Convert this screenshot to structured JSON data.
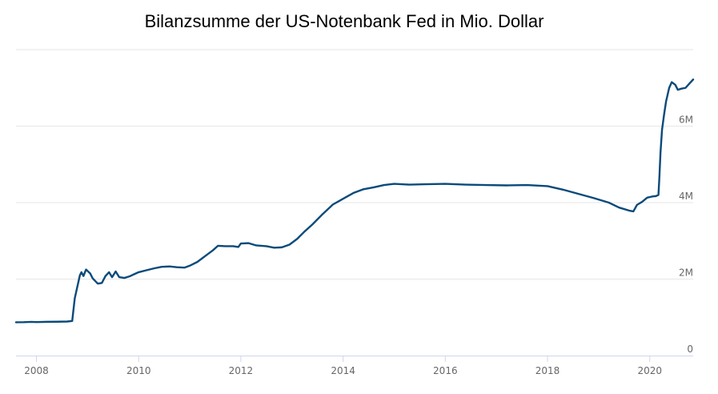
{
  "chart_data": {
    "type": "line",
    "title": "Bilanzsumme der US-Notenbank Fed in Mio. Dollar",
    "xlabel": "",
    "ylabel": "",
    "xlim": [
      2007.6,
      2020.85
    ],
    "ylim": [
      0,
      8000000
    ],
    "grid": true,
    "legend": "none",
    "colors": {
      "line": "#0a4a7a",
      "grid": "#e6e6e6",
      "axis": "#ccd6eb",
      "tick_text": "#666666"
    },
    "x_ticks": [
      {
        "value": 2008,
        "label": "2008"
      },
      {
        "value": 2010,
        "label": "2010"
      },
      {
        "value": 2012,
        "label": "2012"
      },
      {
        "value": 2014,
        "label": "2014"
      },
      {
        "value": 2016,
        "label": "2016"
      },
      {
        "value": 2018,
        "label": "2018"
      },
      {
        "value": 2020,
        "label": "2020"
      }
    ],
    "y_ticks": [
      {
        "value": 0,
        "label": "0"
      },
      {
        "value": 2000000,
        "label": "2M"
      },
      {
        "value": 4000000,
        "label": "4M"
      },
      {
        "value": 6000000,
        "label": "6M"
      }
    ],
    "series": [
      {
        "points": [
          [
            2007.6,
            870000
          ],
          [
            2007.75,
            872000
          ],
          [
            2007.9,
            880000
          ],
          [
            2008.0,
            875000
          ],
          [
            2008.2,
            882000
          ],
          [
            2008.4,
            885000
          ],
          [
            2008.6,
            890000
          ],
          [
            2008.7,
            905000
          ],
          [
            2008.72,
            1150000
          ],
          [
            2008.75,
            1500000
          ],
          [
            2008.8,
            1800000
          ],
          [
            2008.85,
            2100000
          ],
          [
            2008.88,
            2180000
          ],
          [
            2008.92,
            2080000
          ],
          [
            2008.97,
            2250000
          ],
          [
            2009.05,
            2150000
          ],
          [
            2009.1,
            2020000
          ],
          [
            2009.2,
            1880000
          ],
          [
            2009.28,
            1900000
          ],
          [
            2009.35,
            2080000
          ],
          [
            2009.42,
            2180000
          ],
          [
            2009.48,
            2050000
          ],
          [
            2009.55,
            2200000
          ],
          [
            2009.62,
            2050000
          ],
          [
            2009.72,
            2030000
          ],
          [
            2009.82,
            2070000
          ],
          [
            2009.9,
            2120000
          ],
          [
            2010.0,
            2180000
          ],
          [
            2010.15,
            2230000
          ],
          [
            2010.3,
            2280000
          ],
          [
            2010.45,
            2320000
          ],
          [
            2010.6,
            2330000
          ],
          [
            2010.75,
            2310000
          ],
          [
            2010.9,
            2300000
          ],
          [
            2011.0,
            2350000
          ],
          [
            2011.15,
            2450000
          ],
          [
            2011.3,
            2600000
          ],
          [
            2011.45,
            2750000
          ],
          [
            2011.55,
            2870000
          ],
          [
            2011.7,
            2860000
          ],
          [
            2011.85,
            2860000
          ],
          [
            2011.95,
            2840000
          ],
          [
            2012.0,
            2930000
          ],
          [
            2012.15,
            2940000
          ],
          [
            2012.3,
            2880000
          ],
          [
            2012.5,
            2860000
          ],
          [
            2012.65,
            2820000
          ],
          [
            2012.8,
            2830000
          ],
          [
            2012.95,
            2900000
          ],
          [
            2013.1,
            3050000
          ],
          [
            2013.25,
            3250000
          ],
          [
            2013.4,
            3430000
          ],
          [
            2013.6,
            3700000
          ],
          [
            2013.8,
            3950000
          ],
          [
            2014.0,
            4100000
          ],
          [
            2014.2,
            4250000
          ],
          [
            2014.4,
            4350000
          ],
          [
            2014.6,
            4400000
          ],
          [
            2014.8,
            4460000
          ],
          [
            2015.0,
            4490000
          ],
          [
            2015.3,
            4470000
          ],
          [
            2015.6,
            4480000
          ],
          [
            2016.0,
            4490000
          ],
          [
            2016.4,
            4470000
          ],
          [
            2016.8,
            4460000
          ],
          [
            2017.2,
            4450000
          ],
          [
            2017.6,
            4460000
          ],
          [
            2018.0,
            4430000
          ],
          [
            2018.3,
            4340000
          ],
          [
            2018.6,
            4230000
          ],
          [
            2018.9,
            4120000
          ],
          [
            2019.2,
            4000000
          ],
          [
            2019.4,
            3870000
          ],
          [
            2019.6,
            3790000
          ],
          [
            2019.68,
            3770000
          ],
          [
            2019.75,
            3940000
          ],
          [
            2019.85,
            4020000
          ],
          [
            2019.95,
            4130000
          ],
          [
            2020.05,
            4160000
          ],
          [
            2020.12,
            4170000
          ],
          [
            2020.17,
            4200000
          ],
          [
            2020.19,
            4700000
          ],
          [
            2020.21,
            5300000
          ],
          [
            2020.24,
            5900000
          ],
          [
            2020.28,
            6300000
          ],
          [
            2020.32,
            6650000
          ],
          [
            2020.38,
            7000000
          ],
          [
            2020.43,
            7150000
          ],
          [
            2020.5,
            7080000
          ],
          [
            2020.55,
            6950000
          ],
          [
            2020.62,
            6980000
          ],
          [
            2020.7,
            7000000
          ],
          [
            2020.78,
            7120000
          ],
          [
            2020.85,
            7220000
          ]
        ]
      }
    ]
  }
}
